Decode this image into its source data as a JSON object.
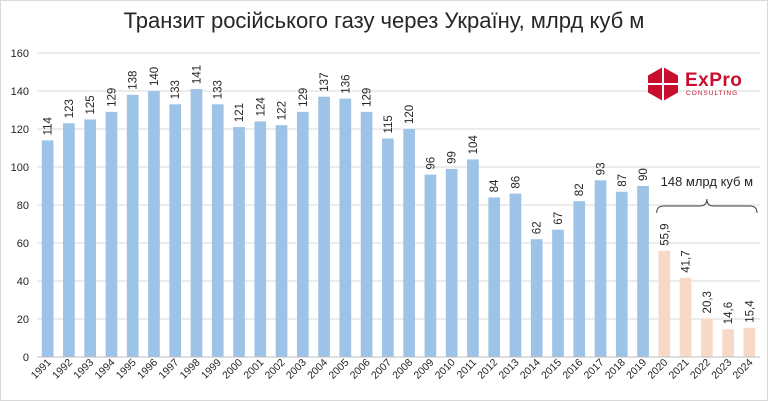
{
  "chart_data": {
    "type": "bar",
    "title": "Транзит російського газу через Україну, млрд куб м",
    "categories": [
      "1991",
      "1992",
      "1993",
      "1994",
      "1995",
      "1996",
      "1997",
      "1998",
      "1999",
      "2000",
      "2001",
      "2002",
      "2003",
      "2004",
      "2005",
      "2006",
      "2007",
      "2008",
      "2009",
      "2010",
      "2011",
      "2012",
      "2013",
      "2014",
      "2015",
      "2016",
      "2017",
      "2018",
      "2019",
      "2020",
      "2021",
      "2022",
      "2023",
      "2024"
    ],
    "values": [
      114,
      123,
      125,
      129,
      138,
      140,
      133,
      141,
      133,
      121,
      124,
      122,
      129,
      137,
      136,
      129,
      115,
      120,
      96,
      99,
      104,
      84,
      86,
      62,
      67,
      82,
      93,
      87,
      90,
      55.9,
      41.7,
      20.3,
      14.6,
      15.4
    ],
    "value_labels": [
      "114",
      "123",
      "125",
      "129",
      "138",
      "140",
      "133",
      "141",
      "133",
      "121",
      "124",
      "122",
      "129",
      "137",
      "136",
      "129",
      "115",
      "120",
      "96",
      "99",
      "104",
      "84",
      "86",
      "62",
      "67",
      "82",
      "93",
      "87",
      "90",
      "55,9",
      "41,7",
      "20,3",
      "14,6",
      "15,4"
    ],
    "ylim": [
      0,
      160
    ],
    "yticks": [
      0,
      20,
      40,
      60,
      80,
      100,
      120,
      140,
      160
    ],
    "grid": true,
    "colors": {
      "historical": "#9dc3e6",
      "contract": "#f8d9c8",
      "grid": "#d9d9d9",
      "text": "#262626"
    },
    "highlight_from_index": 29,
    "annotation": {
      "text": "148 млрд куб м",
      "from_index": 29,
      "to_index": 33
    }
  },
  "logo": {
    "wordmark": "ExPro",
    "subtitle": "CONSULTING"
  }
}
